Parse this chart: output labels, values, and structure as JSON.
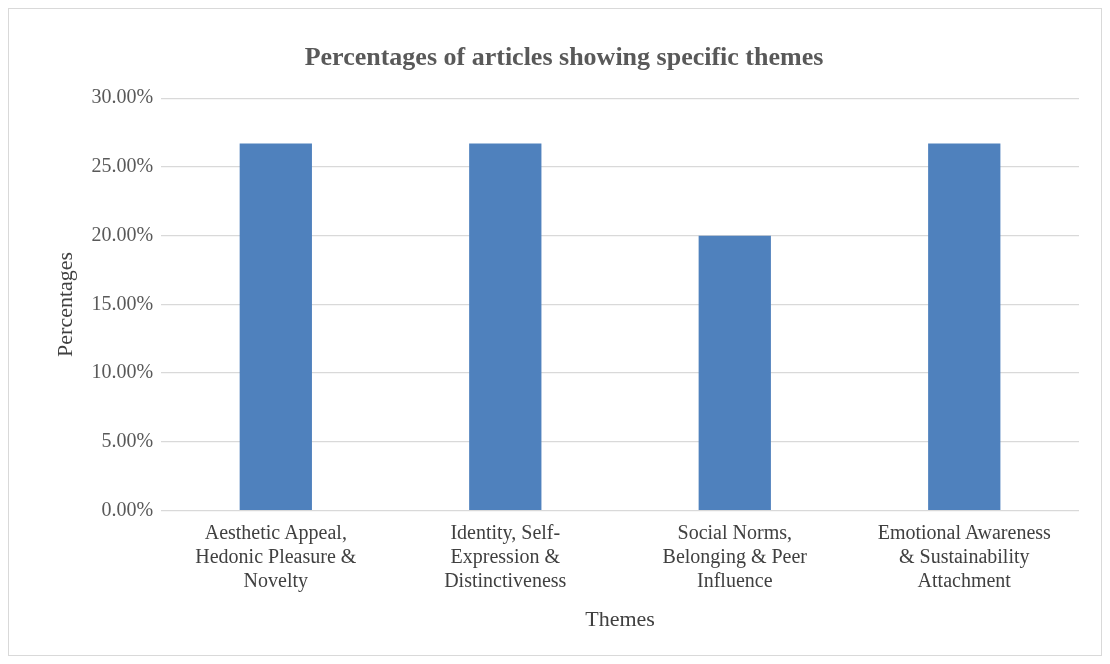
{
  "chart_data": {
    "type": "bar",
    "title": "Percentages of articles showing specific themes",
    "xlabel": "Themes",
    "ylabel": "Percentages",
    "categories": [
      "Aesthetic Appeal, Hedonic Pleasure & Novelty",
      "Identity, Self-Expression & Distinctiveness",
      "Social Norms, Belonging & Peer Influence",
      "Emotional Awareness & Sustainability Attachment"
    ],
    "values": [
      26.7,
      26.7,
      20,
      26.7
    ],
    "color": "#4f81bd",
    "ylim": [
      0,
      30
    ],
    "yticks": [
      {
        "value": 0,
        "label": "0.00%"
      },
      {
        "value": 5,
        "label": "5.00%"
      },
      {
        "value": 10,
        "label": "10.00%"
      },
      {
        "value": 15,
        "label": "15.00%"
      },
      {
        "value": 20,
        "label": "20.00%"
      },
      {
        "value": 25,
        "label": "25.00%"
      },
      {
        "value": 30,
        "label": "30.00%"
      }
    ],
    "grid": "y",
    "legend": false
  }
}
